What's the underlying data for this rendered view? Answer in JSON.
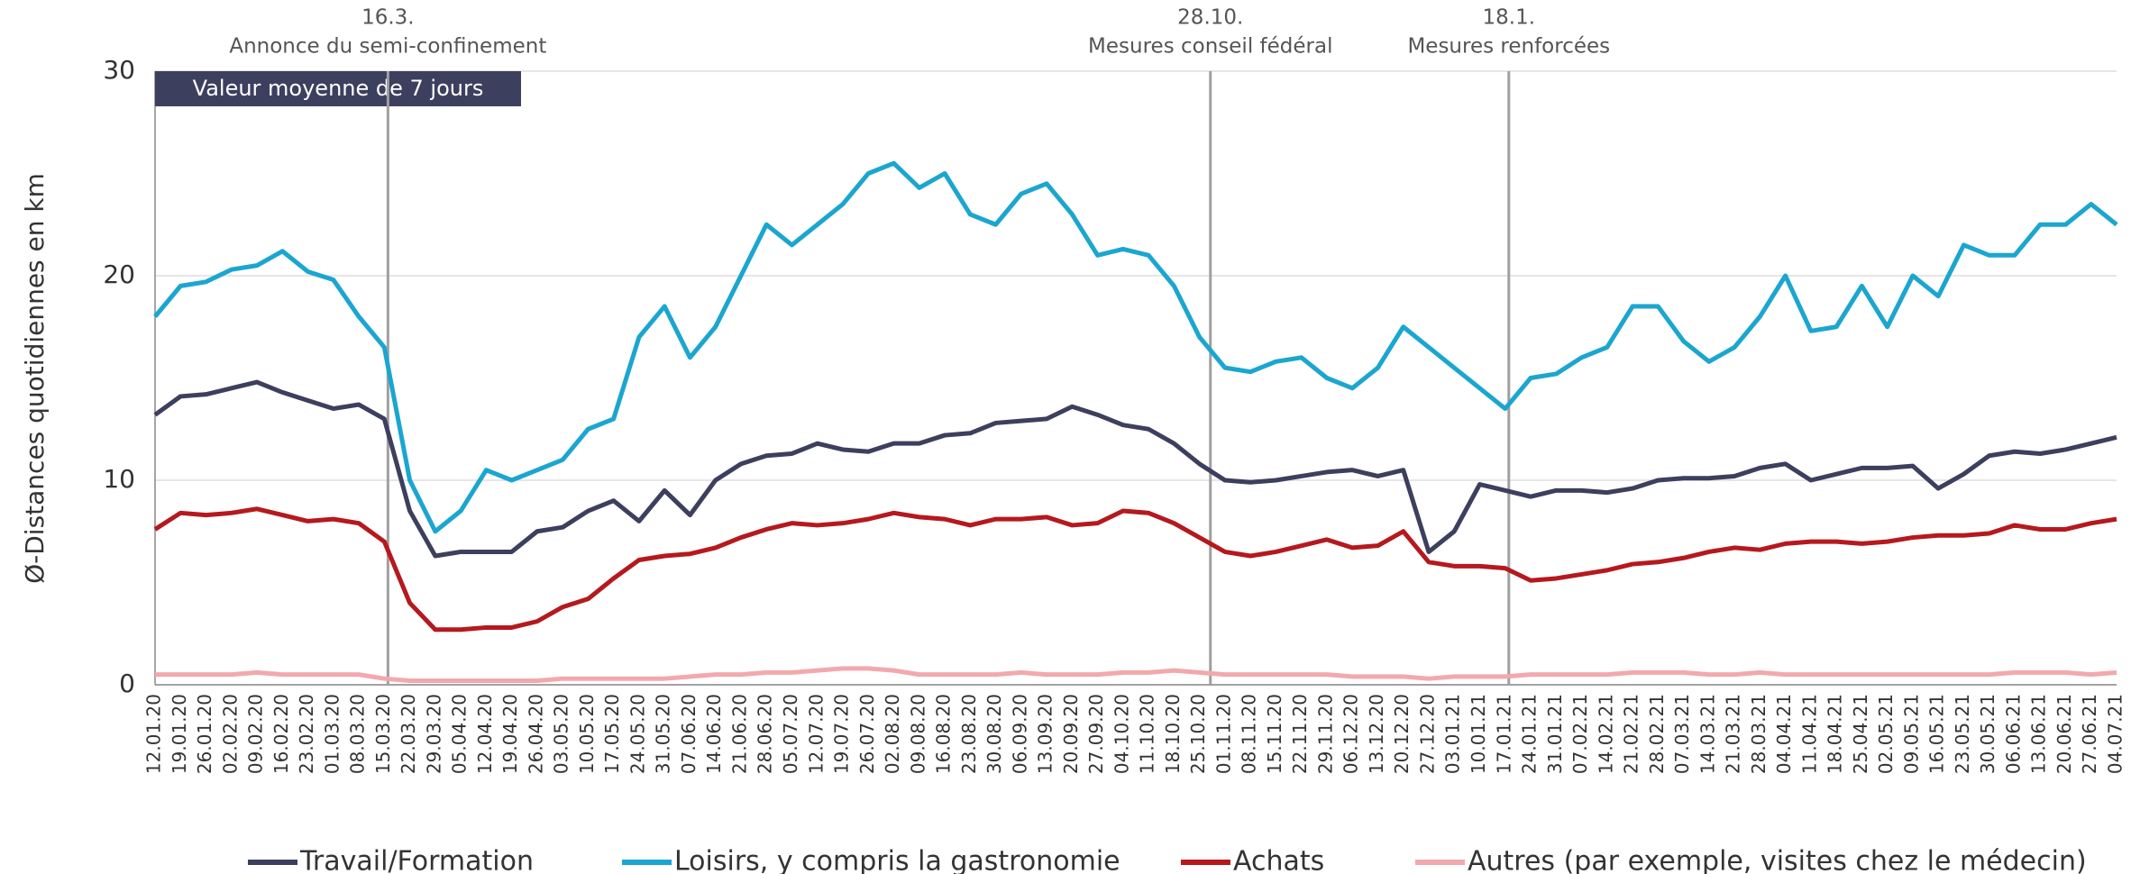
{
  "chart_data": {
    "type": "line",
    "y_label": "Ø-Distances quotidiennes en km",
    "box_label": "Valeur moyenne de 7 jours",
    "annotations": [
      {
        "date": "16.3.",
        "text": "Annonce du semi-confinement"
      },
      {
        "date": "28.10.",
        "text": "Mesures conseil fédéral"
      },
      {
        "date": "18.1.",
        "text": "Mesures renforcées"
      }
    ],
    "categories": [
      "12.01.20",
      "19.01.20",
      "26.01.20",
      "02.02.20",
      "09.02.20",
      "16.02.20",
      "23.02.20",
      "01.03.20",
      "08.03.20",
      "15.03.20",
      "22.03.20",
      "29.03.20",
      "05.04.20",
      "12.04.20",
      "19.04.20",
      "26.04.20",
      "03.05.20",
      "10.05.20",
      "17.05.20",
      "24.05.20",
      "31.05.20",
      "07.06.20",
      "14.06.20",
      "21.06.20",
      "28.06.20",
      "05.07.20",
      "12.07.20",
      "19.07.20",
      "26.07.20",
      "02.08.20",
      "09.08.20",
      "16.08.20",
      "23.08.20",
      "30.08.20",
      "06.09.20",
      "13.09.20",
      "20.09.20",
      "27.09.20",
      "04.10.20",
      "11.10.20",
      "18.10.20",
      "25.10.20",
      "01.11.20",
      "08.11.20",
      "15.11.20",
      "22.11.20",
      "29.11.20",
      "06.12.20",
      "13.12.20",
      "20.12.20",
      "27.12.20",
      "03.01.21",
      "10.01.21",
      "17.01.21",
      "24.01.21",
      "31.01.21",
      "07.02.21",
      "14.02.21",
      "21.02.21",
      "28.02.21",
      "07.03.21",
      "14.03.21",
      "21.03.21",
      "28.03.21",
      "04.04.21",
      "11.04.21",
      "18.04.21",
      "25.04.21",
      "02.05.21",
      "09.05.21",
      "16.05.21",
      "23.05.21",
      "30.05.21",
      "06.06.21",
      "13.06.21",
      "20.06.21",
      "27.06.21",
      "04.07.21"
    ],
    "series": [
      {
        "name": "Travail/Formation",
        "color": "#3d3f5e",
        "values": [
          13.2,
          14.1,
          14.2,
          14.5,
          14.8,
          14.3,
          13.9,
          13.5,
          13.7,
          13,
          8.5,
          6.3,
          6.5,
          6.5,
          6.5,
          7.5,
          7.7,
          8.5,
          9,
          8,
          9.5,
          8.3,
          10,
          10.8,
          11.2,
          11.3,
          11.8,
          11.5,
          11.4,
          11.8,
          11.8,
          12.2,
          12.3,
          12.8,
          12.9,
          13,
          13.6,
          13.2,
          12.7,
          12.5,
          11.8,
          10.8,
          10,
          9.9,
          10,
          10.2,
          10.4,
          10.5,
          10.2,
          10.5,
          6.5,
          7.5,
          9.8,
          9.5,
          9.2,
          9.5,
          9.5,
          9.4,
          9.6,
          10,
          10.1,
          10.1,
          10.2,
          10.6,
          10.8,
          10,
          10.3,
          10.6,
          10.6,
          10.7,
          9.6,
          10.3,
          11.2,
          11.4,
          11.3,
          11.5,
          11.8,
          12.1
        ]
      },
      {
        "name": "Loisirs, y compris la gastronomie",
        "color": "#1ba6cf",
        "values": [
          18,
          19.5,
          19.7,
          20.3,
          20.5,
          21.2,
          20.2,
          19.8,
          18,
          16.5,
          10,
          7.5,
          8.5,
          10.5,
          10,
          10.5,
          11,
          12.5,
          13,
          17,
          18.5,
          16,
          17.5,
          20,
          22.5,
          21.5,
          22.5,
          23.5,
          25,
          25.5,
          24.3,
          25,
          23,
          22.5,
          24,
          24.5,
          23,
          21,
          21.3,
          21,
          19.5,
          17,
          15.5,
          15.3,
          15.8,
          16,
          15,
          14.5,
          15.5,
          17.5,
          16.5,
          15.5,
          14.5,
          13.5,
          15,
          15.2,
          16,
          16.5,
          18.5,
          18.5,
          16.8,
          15.8,
          16.5,
          18,
          20,
          17.3,
          17.5,
          19.5,
          17.5,
          20,
          19,
          21.5,
          21,
          21,
          22.5,
          22.5,
          23.5,
          22.5
        ]
      },
      {
        "name": "Achats",
        "color": "#b5191e",
        "values": [
          7.6,
          8.4,
          8.3,
          8.4,
          8.6,
          8.3,
          8,
          8.1,
          7.9,
          7,
          4,
          2.7,
          2.7,
          2.8,
          2.8,
          3.1,
          3.8,
          4.2,
          5.2,
          6.1,
          6.3,
          6.4,
          6.7,
          7.2,
          7.6,
          7.9,
          7.8,
          7.9,
          8.1,
          8.4,
          8.2,
          8.1,
          7.8,
          8.1,
          8.1,
          8.2,
          7.8,
          7.9,
          8.5,
          8.4,
          7.9,
          7.2,
          6.5,
          6.3,
          6.5,
          6.8,
          7.1,
          6.7,
          6.8,
          7.5,
          6,
          5.8,
          5.8,
          5.7,
          5.1,
          5.2,
          5.4,
          5.6,
          5.9,
          6,
          6.2,
          6.5,
          6.7,
          6.6,
          6.9,
          7,
          7,
          6.9,
          7,
          7.2,
          7.3,
          7.3,
          7.4,
          7.8,
          7.6,
          7.6,
          7.9,
          8.1
        ]
      },
      {
        "name": "Autres (par exemple, visites chez le médecin)",
        "color": "#f2a9ad",
        "values": [
          0.5,
          0.5,
          0.5,
          0.5,
          0.6,
          0.5,
          0.5,
          0.5,
          0.5,
          0.3,
          0.2,
          0.2,
          0.2,
          0.2,
          0.2,
          0.2,
          0.3,
          0.3,
          0.3,
          0.3,
          0.3,
          0.4,
          0.5,
          0.5,
          0.6,
          0.6,
          0.7,
          0.8,
          0.8,
          0.7,
          0.5,
          0.5,
          0.5,
          0.5,
          0.6,
          0.5,
          0.5,
          0.5,
          0.6,
          0.6,
          0.7,
          0.6,
          0.5,
          0.5,
          0.5,
          0.5,
          0.5,
          0.4,
          0.4,
          0.4,
          0.3,
          0.4,
          0.4,
          0.4,
          0.5,
          0.5,
          0.5,
          0.5,
          0.6,
          0.6,
          0.6,
          0.5,
          0.5,
          0.6,
          0.5,
          0.5,
          0.5,
          0.5,
          0.5,
          0.5,
          0.5,
          0.5,
          0.5,
          0.6,
          0.6,
          0.6,
          0.5,
          0.6
        ]
      }
    ],
    "ylim": [
      0,
      30
    ],
    "yticks": [
      0,
      10,
      20,
      30
    ],
    "grid": true
  }
}
